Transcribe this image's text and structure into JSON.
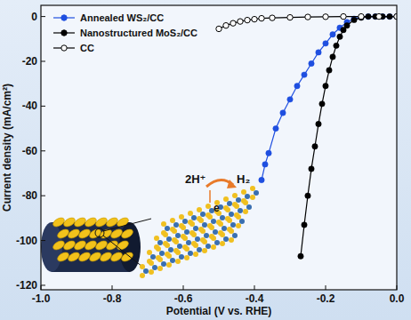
{
  "chart_data": {
    "type": "line",
    "x_label": "Potential (V vs. RHE)",
    "y_label": "Current density (mA/cm²)",
    "xlim": [
      -1,
      0
    ],
    "ylim": [
      -122,
      5
    ],
    "xticks": [
      {
        "value": -1,
        "label": "-1.0"
      },
      {
        "value": -0.8,
        "label": "-0.8"
      },
      {
        "value": -0.6,
        "label": "-0.6"
      },
      {
        "value": -0.4,
        "label": "-0.4"
      },
      {
        "value": -0.2,
        "label": "-0.2"
      },
      {
        "value": 0,
        "label": "0.0"
      }
    ],
    "yticks": [
      0,
      -20,
      -40,
      -60,
      -80,
      -100,
      -120
    ],
    "legend": "upper left",
    "grid": false,
    "annotations": [
      "2H⁺",
      "H₂",
      "e"
    ],
    "series": [
      {
        "name": "Annealed WS₂/CC",
        "color": "#1f4fe0",
        "marker": "circle",
        "line_style": "solid",
        "x": [
          0,
          -0.02,
          -0.04,
          -0.06,
          -0.08,
          -0.1,
          -0.12,
          -0.14,
          -0.16,
          -0.18,
          -0.2,
          -0.22,
          -0.24,
          -0.26,
          -0.28,
          -0.3,
          -0.32,
          -0.34,
          -0.36,
          -0.37,
          -0.38
        ],
        "values": [
          0,
          0,
          0,
          0,
          0,
          -0.3,
          -1,
          -2.5,
          -5,
          -8,
          -12,
          -16,
          -21,
          -26,
          -31,
          -37,
          -43,
          -50,
          -61,
          -66,
          -73
        ]
      },
      {
        "name": "Nanostructured MoS₂/CC",
        "color": "#000000",
        "marker": "circle",
        "line_style": "solid",
        "x": [
          0,
          -0.02,
          -0.04,
          -0.06,
          -0.08,
          -0.1,
          -0.12,
          -0.14,
          -0.15,
          -0.16,
          -0.17,
          -0.18,
          -0.19,
          -0.2,
          -0.21,
          -0.22,
          -0.23,
          -0.24,
          -0.25,
          -0.26,
          -0.27
        ],
        "values": [
          0,
          0,
          0,
          0,
          0,
          -0.5,
          -1.5,
          -4,
          -6,
          -9,
          -13,
          -18,
          -24,
          -31,
          -39,
          -48,
          -58,
          -68,
          -80,
          -93,
          -107
        ]
      },
      {
        "name": "CC",
        "color": "#000000",
        "marker": "open_circle",
        "line_style": "solid",
        "x": [
          0,
          -0.05,
          -0.1,
          -0.15,
          -0.2,
          -0.25,
          -0.3,
          -0.35,
          -0.38,
          -0.4,
          -0.42,
          -0.44,
          -0.46,
          -0.48,
          -0.5
        ],
        "values": [
          0,
          0,
          0,
          0,
          -0.1,
          -0.2,
          -0.4,
          -0.6,
          -0.8,
          -1.2,
          -1.6,
          -2.2,
          -3,
          -4,
          -5.5
        ]
      }
    ]
  }
}
